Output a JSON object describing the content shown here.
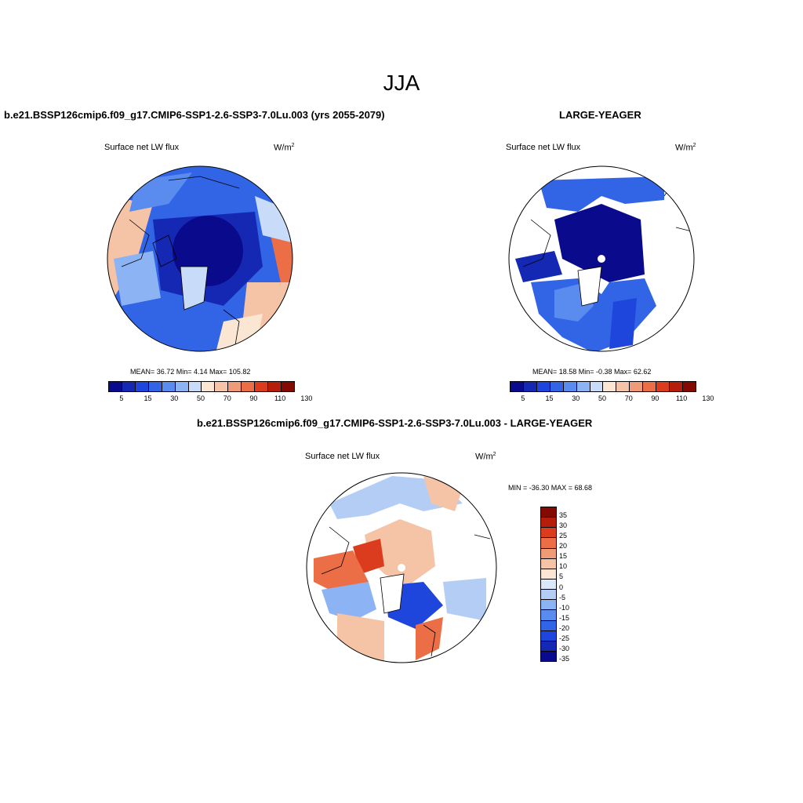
{
  "figure": {
    "season": "JJA"
  },
  "panels": {
    "left": {
      "title": "b.e21.BSSP126cmip6.f09_g17.CMIP6-SSP1-2.6-SSP3-7.0Lu.003 (yrs 2055-2079)",
      "variable": "Surface net LW flux",
      "units_base": "W/m",
      "units_exp": "2",
      "stats": "MEAN=  36.72  Min=   4.14  Max= 105.82",
      "colorbar_ticks": [
        "5",
        "15",
        "30",
        "50",
        "70",
        "90",
        "110",
        "130"
      ]
    },
    "right": {
      "title": "LARGE-YEAGER",
      "variable": "Surface net LW flux",
      "units_base": "W/m",
      "units_exp": "2",
      "stats": "MEAN=  18.58  Min=  -0.38  Max=  62.62",
      "colorbar_ticks": [
        "5",
        "15",
        "30",
        "50",
        "70",
        "90",
        "110",
        "130"
      ]
    },
    "diff": {
      "title": "b.e21.BSSP126cmip6.f09_g17.CMIP6-SSP1-2.6-SSP3-7.0Lu.003 - LARGE-YEAGER",
      "variable": "Surface net LW flux",
      "units_base": "W/m",
      "units_exp": "2",
      "stats": "MIN = -36.30 MAX =  68.68",
      "colorbar_ticks": [
        "35",
        "30",
        "25",
        "20",
        "15",
        "10",
        "5",
        "0",
        "-5",
        "-10",
        "-15",
        "-20",
        "-25",
        "-30",
        "-35"
      ]
    }
  },
  "colors": {
    "abs_scale": [
      "#0a0a8c",
      "#1428b4",
      "#1e46dc",
      "#3264e6",
      "#5a8cf0",
      "#8cb4f5",
      "#c8dcfa",
      "#fae6d2",
      "#f5c3a5",
      "#f09b78",
      "#eb6e46",
      "#dc3c1e",
      "#b41e0a",
      "#820a00"
    ],
    "diff_scale": [
      "#820a00",
      "#b41e0a",
      "#dc3c1e",
      "#eb6e46",
      "#f09b78",
      "#f5c3a5",
      "#fae6d2",
      "#dce8fa",
      "#b4cdf5",
      "#8cb4f5",
      "#5a8cf0",
      "#3264e6",
      "#1e46dc",
      "#1428b4",
      "#0a0a8c"
    ]
  }
}
